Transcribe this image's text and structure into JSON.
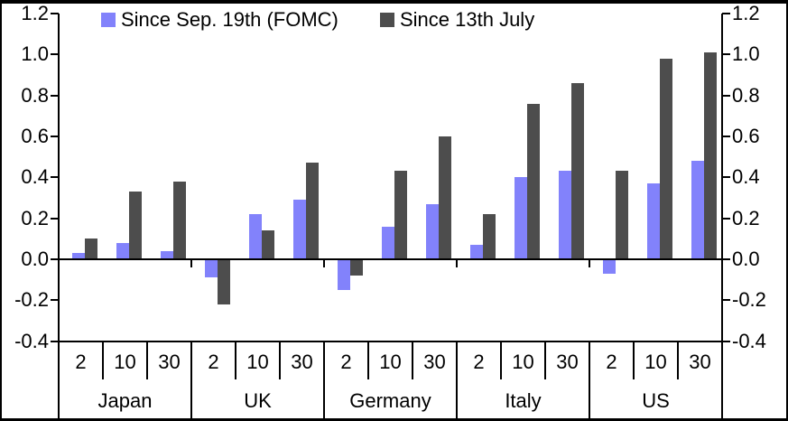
{
  "chart_data": {
    "type": "bar",
    "title": "",
    "legend_position": "top",
    "background": "#ffffff",
    "axis_color": "#000000",
    "y_axis": {
      "min": -0.4,
      "max": 1.2,
      "step": 0.2,
      "dual_axis": true,
      "tick_labels": [
        "1.2",
        "1.0",
        "0.8",
        "0.6",
        "0.4",
        "0.2",
        "0.0",
        "-0.2",
        "-0.4"
      ]
    },
    "groups": [
      "Japan",
      "UK",
      "Germany",
      "Italy",
      "US"
    ],
    "maturities": [
      "2",
      "10",
      "30"
    ],
    "series": [
      {
        "name": "Since Sep. 19th (FOMC)",
        "color": "#8282fb",
        "values": [
          0.03,
          0.08,
          0.04,
          -0.09,
          0.22,
          0.29,
          -0.15,
          0.16,
          0.27,
          0.07,
          0.4,
          0.43,
          -0.07,
          0.37,
          0.48
        ]
      },
      {
        "name": "Since 13th July",
        "color": "#4d4d4d",
        "values": [
          0.1,
          0.33,
          0.38,
          -0.22,
          0.14,
          0.47,
          -0.08,
          0.43,
          0.6,
          0.22,
          0.76,
          0.86,
          0.43,
          0.98,
          1.01
        ]
      }
    ]
  }
}
